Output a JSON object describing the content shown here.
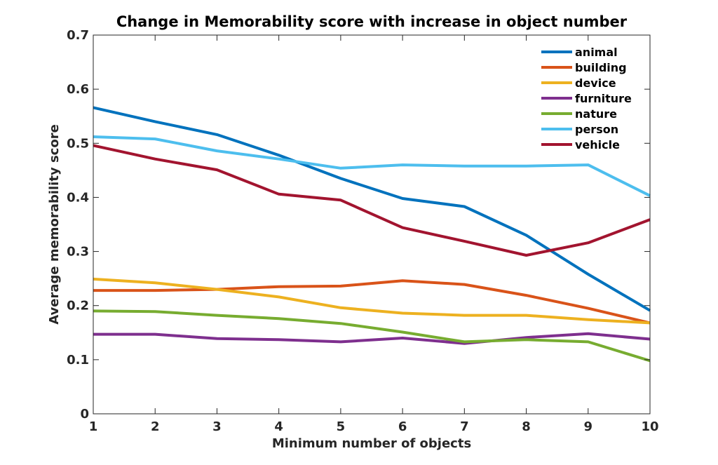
{
  "chart_data": {
    "type": "line",
    "title": "Change in Memorability score with increase in object number",
    "xlabel": "Minimum number of objects",
    "ylabel": "Average memorability score",
    "xlim": [
      1,
      10
    ],
    "ylim": [
      0,
      0.7
    ],
    "x": [
      1,
      2,
      3,
      4,
      5,
      6,
      7,
      8,
      9,
      10
    ],
    "xticks": [
      "1",
      "2",
      "3",
      "4",
      "5",
      "6",
      "7",
      "8",
      "9",
      "10"
    ],
    "yticks": [
      "0",
      "0.1",
      "0.2",
      "0.3",
      "0.4",
      "0.5",
      "0.6",
      "0.7"
    ],
    "grid": false,
    "legend_position": "top-right",
    "series": [
      {
        "name": "animal",
        "color": "#0072BD",
        "values": [
          0.566,
          0.54,
          0.516,
          0.478,
          0.435,
          0.398,
          0.383,
          0.33,
          0.258,
          0.191
        ]
      },
      {
        "name": "building",
        "color": "#D95319",
        "values": [
          0.228,
          0.228,
          0.23,
          0.235,
          0.236,
          0.246,
          0.239,
          0.219,
          0.195,
          0.168
        ]
      },
      {
        "name": "device",
        "color": "#EDB120",
        "values": [
          0.249,
          0.242,
          0.23,
          0.216,
          0.196,
          0.186,
          0.182,
          0.182,
          0.174,
          0.168
        ]
      },
      {
        "name": "furniture",
        "color": "#7E2F8E",
        "values": [
          0.147,
          0.147,
          0.139,
          0.137,
          0.133,
          0.14,
          0.13,
          0.141,
          0.148,
          0.138
        ]
      },
      {
        "name": "nature",
        "color": "#77AC30",
        "values": [
          0.19,
          0.189,
          0.182,
          0.176,
          0.167,
          0.151,
          0.133,
          0.137,
          0.133,
          0.098
        ]
      },
      {
        "name": "person",
        "color": "#4DBEEE",
        "values": [
          0.512,
          0.508,
          0.486,
          0.471,
          0.454,
          0.46,
          0.458,
          0.458,
          0.46,
          0.403
        ]
      },
      {
        "name": "vehicle",
        "color": "#A2142F",
        "values": [
          0.496,
          0.471,
          0.451,
          0.406,
          0.395,
          0.344,
          0.319,
          0.293,
          0.316,
          0.359
        ]
      }
    ]
  }
}
